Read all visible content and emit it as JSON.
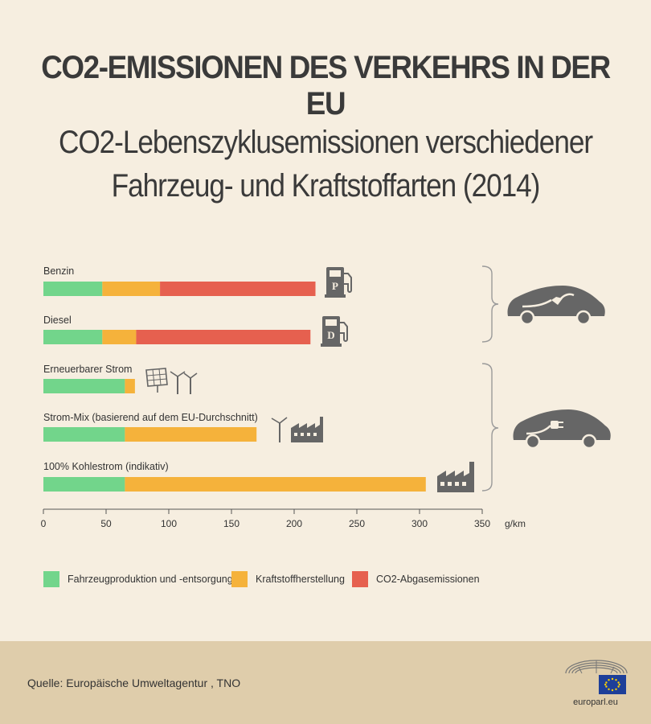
{
  "title": "CO2-EMISSIONEN DES VERKEHRS IN DER EU",
  "subtitle_line1": "CO2-Lebenszyklusemissionen verschiedener",
  "subtitle_line2": "Fahrzeug- und Kraftstoffarten (2014)",
  "colors": {
    "production": "#72d58b",
    "fuel": "#f5b23b",
    "exhaust": "#e6604f",
    "icon": "#666666",
    "background": "#f6eee0",
    "footer": "#dfcdab"
  },
  "chart_data": {
    "type": "bar",
    "orientation": "horizontal",
    "stacked": true,
    "categories": [
      "Benzin",
      "Diesel",
      "Erneuerbarer Strom",
      "Strom-Mix (basierend auf dem EU-Durchschnitt)",
      "100% Kohlestrom (indikativ)"
    ],
    "series": [
      {
        "name": "Fahrzeugproduktion und -entsorgung",
        "values": [
          47,
          47,
          65,
          65,
          65
        ]
      },
      {
        "name": "Kraftstoffherstellung",
        "values": [
          46,
          27,
          8,
          105,
          240
        ]
      },
      {
        "name": "CO2-Abgasemissionen",
        "values": [
          124,
          139,
          0,
          0,
          0
        ]
      }
    ],
    "xlim": [
      0,
      350
    ],
    "x_ticks": [
      0,
      50,
      100,
      150,
      200,
      250,
      300,
      350
    ],
    "x_unit": "g/km",
    "legend_position": "bottom"
  },
  "legend": [
    {
      "label": "Fahrzeugproduktion und -entsorgung",
      "color": "#72d58b"
    },
    {
      "label": "Kraftstoffherstellung",
      "color": "#f5b23b"
    },
    {
      "label": "CO2-Abgasemissionen",
      "color": "#e6604f"
    }
  ],
  "pump_labels": [
    "P",
    "D"
  ],
  "source": "Quelle: Europäische Umweltagentur , TNO",
  "logo_text": "europarl.eu"
}
